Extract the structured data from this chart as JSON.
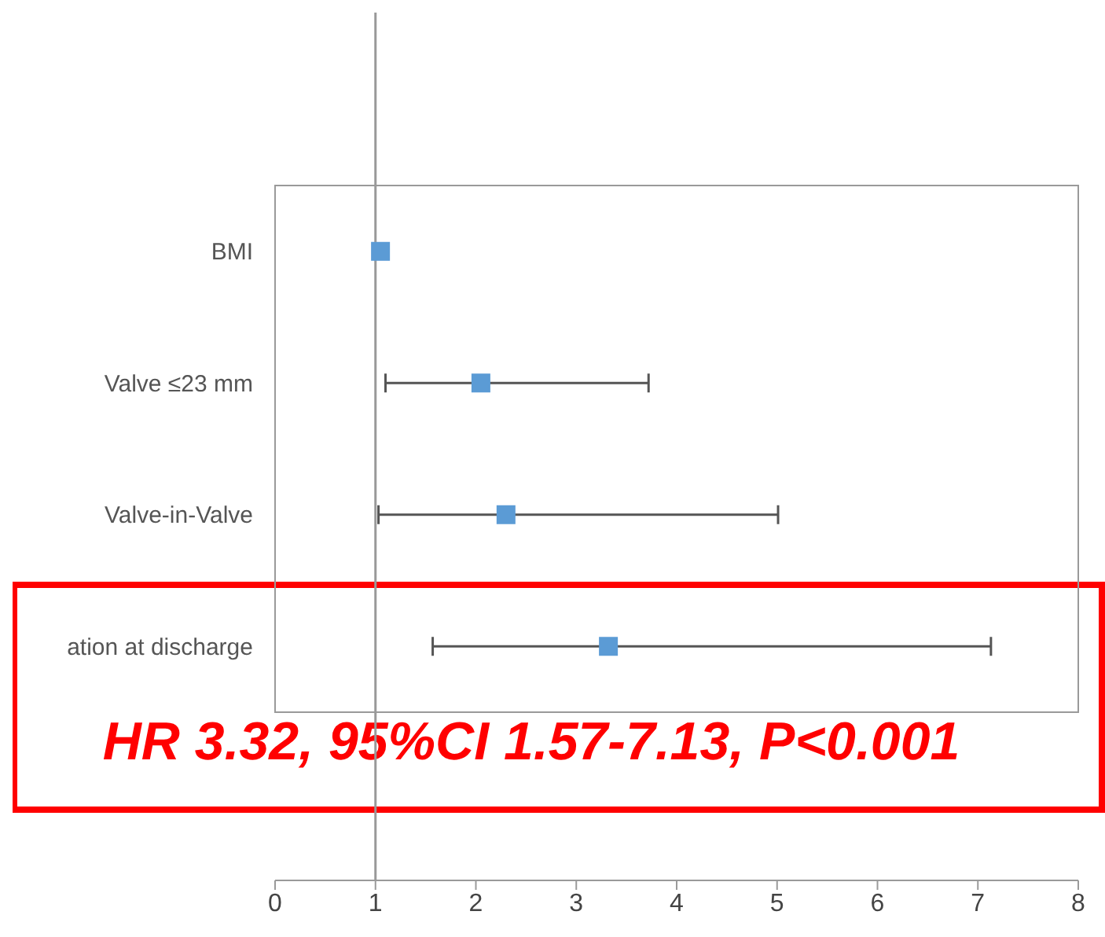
{
  "chart_data": {
    "type": "scatter",
    "orientation": "horizontal",
    "categories": [
      "BMI",
      "Valve ≤23 mm",
      "Valve-in-Valve",
      "ation at discharge"
    ],
    "values": [
      1.05,
      2.05,
      2.3,
      3.32
    ],
    "errors": [
      null,
      [
        1.1,
        3.72
      ],
      [
        1.03,
        5.01
      ],
      [
        1.57,
        7.13
      ]
    ],
    "color": "#5b9bd5",
    "marker": "square",
    "grid": false,
    "xlim": [
      0,
      8
    ],
    "xticks": [
      0,
      1,
      2,
      3,
      4,
      5,
      6,
      7,
      8
    ],
    "ref_lines": [
      {
        "axis": "x",
        "value": 1,
        "color": "#999999"
      }
    ],
    "annotations": [
      "HR 3.32, 95%CI 1.57-7.13, P<0.001"
    ]
  }
}
